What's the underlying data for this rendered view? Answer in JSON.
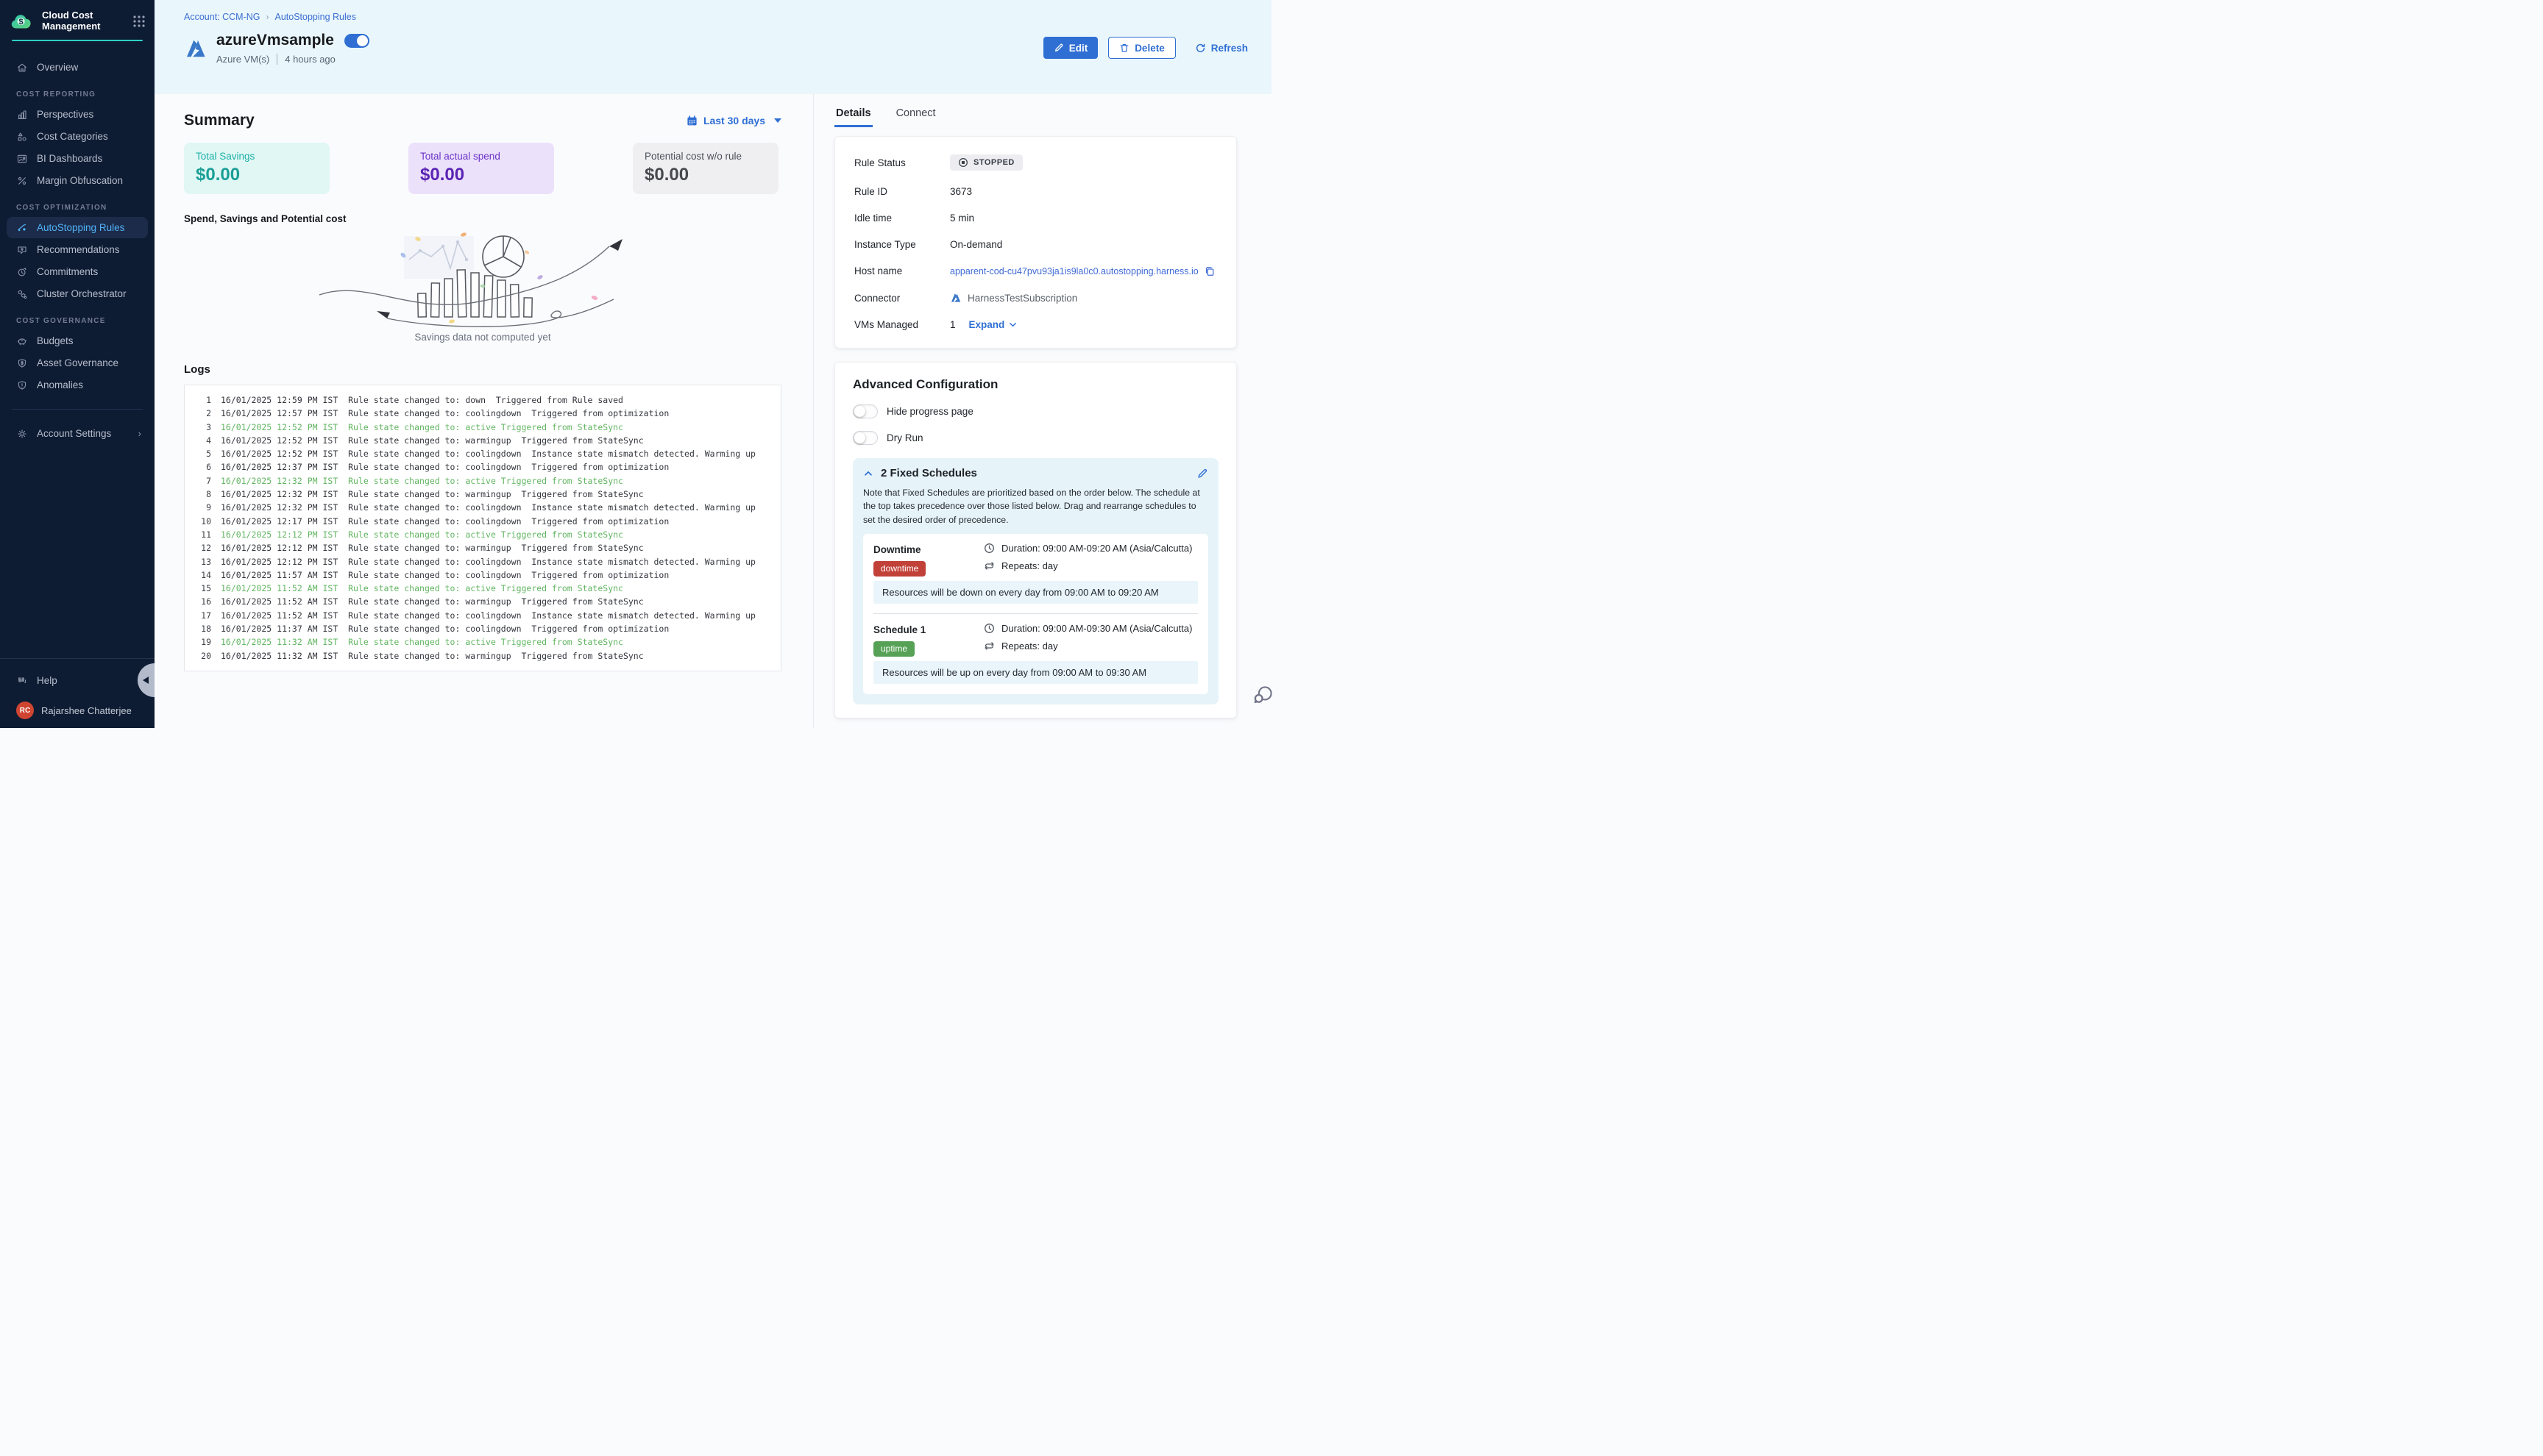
{
  "colors": {
    "sidebar_bg": "#0e1c33",
    "accent_teal": "#2bd0c5",
    "primary_blue": "#2f6fd4",
    "link_blue": "#3c6fd0",
    "active_nav_blue": "#4fb2f7",
    "header_band_bg": "#e9f6fc",
    "savings_teal": "#1a9f97",
    "savings_bg": "#e0f7f4",
    "spend_purple": "#5b24b4",
    "spend_bg": "#ece1fb",
    "potential_gray": "#47494f",
    "potential_bg": "#efeff2",
    "log_highlight_green": "#61b561",
    "downtime_red": "#c14038",
    "uptime_green": "#56a156",
    "schedules_panel_bg": "#e6f3f9",
    "avatar_red": "#cf4532"
  },
  "sidebar": {
    "title": "Cloud Cost Management",
    "sections": [
      {
        "items": [
          {
            "label": "Overview",
            "icon": "home"
          }
        ]
      },
      {
        "header": "COST REPORTING",
        "items": [
          {
            "label": "Perspectives",
            "icon": "bar-chart"
          },
          {
            "label": "Cost Categories",
            "icon": "shapes"
          },
          {
            "label": "BI Dashboards",
            "icon": "dashboard"
          },
          {
            "label": "Margin Obfuscation",
            "icon": "percent"
          }
        ]
      },
      {
        "header": "COST OPTIMIZATION",
        "items": [
          {
            "label": "AutoStopping Rules",
            "icon": "autostopping",
            "active": true
          },
          {
            "label": "Recommendations",
            "icon": "recommendation"
          },
          {
            "label": "Commitments",
            "icon": "clock-refresh"
          },
          {
            "label": "Cluster Orchestrator",
            "icon": "hexagons"
          }
        ]
      },
      {
        "header": "COST GOVERNANCE",
        "items": [
          {
            "label": "Budgets",
            "icon": "piggy-bank"
          },
          {
            "label": "Asset Governance",
            "icon": "shield-dollar"
          },
          {
            "label": "Anomalies",
            "icon": "shield-alert"
          }
        ]
      }
    ],
    "account_settings_label": "Account Settings",
    "help_label": "Help",
    "user": {
      "initials": "RC",
      "name": "Rajarshee Chatterjee"
    }
  },
  "breadcrumb": {
    "account": "Account: CCM-NG",
    "page": "AutoStopping Rules"
  },
  "header": {
    "title": "azureVmsample",
    "resource_type": "Azure VM(s)",
    "last_updated": "4 hours ago",
    "toggle_on": true,
    "edit_label": "Edit",
    "delete_label": "Delete",
    "refresh_label": "Refresh"
  },
  "summary": {
    "title": "Summary",
    "date_range_label": "Last 30 days",
    "cards": [
      {
        "label": "Total Savings",
        "value": "$0.00"
      },
      {
        "label": "Total actual spend",
        "value": "$0.00"
      },
      {
        "label": "Potential cost w/o rule",
        "value": "$0.00"
      }
    ],
    "chart_heading": "Spend, Savings and Potential cost",
    "empty_message": "Savings data not computed yet"
  },
  "logs": {
    "title": "Logs",
    "lines": [
      {
        "n": 1,
        "t": "16/01/2025 12:59 PM IST",
        "m": "Rule state changed to: down  Triggered from Rule saved",
        "highlight": false
      },
      {
        "n": 2,
        "t": "16/01/2025 12:57 PM IST",
        "m": "Rule state changed to: coolingdown  Triggered from optimization",
        "highlight": false
      },
      {
        "n": 3,
        "t": "16/01/2025 12:52 PM IST",
        "m": "Rule state changed to: active Triggered from StateSync",
        "highlight": true
      },
      {
        "n": 4,
        "t": "16/01/2025 12:52 PM IST",
        "m": "Rule state changed to: warmingup  Triggered from StateSync",
        "highlight": false
      },
      {
        "n": 5,
        "t": "16/01/2025 12:52 PM IST",
        "m": "Rule state changed to: coolingdown  Instance state mismatch detected. Warming up",
        "highlight": false
      },
      {
        "n": 6,
        "t": "16/01/2025 12:37 PM IST",
        "m": "Rule state changed to: coolingdown  Triggered from optimization",
        "highlight": false
      },
      {
        "n": 7,
        "t": "16/01/2025 12:32 PM IST",
        "m": "Rule state changed to: active Triggered from StateSync",
        "highlight": true
      },
      {
        "n": 8,
        "t": "16/01/2025 12:32 PM IST",
        "m": "Rule state changed to: warmingup  Triggered from StateSync",
        "highlight": false
      },
      {
        "n": 9,
        "t": "16/01/2025 12:32 PM IST",
        "m": "Rule state changed to: coolingdown  Instance state mismatch detected. Warming up",
        "highlight": false
      },
      {
        "n": 10,
        "t": "16/01/2025 12:17 PM IST",
        "m": "Rule state changed to: coolingdown  Triggered from optimization",
        "highlight": false
      },
      {
        "n": 11,
        "t": "16/01/2025 12:12 PM IST",
        "m": "Rule state changed to: active Triggered from StateSync",
        "highlight": true
      },
      {
        "n": 12,
        "t": "16/01/2025 12:12 PM IST",
        "m": "Rule state changed to: warmingup  Triggered from StateSync",
        "highlight": false
      },
      {
        "n": 13,
        "t": "16/01/2025 12:12 PM IST",
        "m": "Rule state changed to: coolingdown  Instance state mismatch detected. Warming up",
        "highlight": false
      },
      {
        "n": 14,
        "t": "16/01/2025 11:57 AM IST",
        "m": "Rule state changed to: coolingdown  Triggered from optimization",
        "highlight": false
      },
      {
        "n": 15,
        "t": "16/01/2025 11:52 AM IST",
        "m": "Rule state changed to: active Triggered from StateSync",
        "highlight": true
      },
      {
        "n": 16,
        "t": "16/01/2025 11:52 AM IST",
        "m": "Rule state changed to: warmingup  Triggered from StateSync",
        "highlight": false
      },
      {
        "n": 17,
        "t": "16/01/2025 11:52 AM IST",
        "m": "Rule state changed to: coolingdown  Instance state mismatch detected. Warming up",
        "highlight": false
      },
      {
        "n": 18,
        "t": "16/01/2025 11:37 AM IST",
        "m": "Rule state changed to: coolingdown  Triggered from optimization",
        "highlight": false
      },
      {
        "n": 19,
        "t": "16/01/2025 11:32 AM IST",
        "m": "Rule state changed to: active Triggered from StateSync",
        "highlight": true
      },
      {
        "n": 20,
        "t": "16/01/2025 11:32 AM IST",
        "m": "Rule state changed to: warmingup  Triggered from StateSync",
        "highlight": false
      }
    ]
  },
  "details_panel": {
    "tabs": [
      {
        "label": "Details",
        "active": true
      },
      {
        "label": "Connect",
        "active": false
      }
    ],
    "rows": {
      "rule_status": {
        "label": "Rule Status",
        "value": "STOPPED"
      },
      "rule_id": {
        "label": "Rule ID",
        "value": "3673"
      },
      "idle_time": {
        "label": "Idle time",
        "value": "5 min"
      },
      "instance_type": {
        "label": "Instance Type",
        "value": "On-demand"
      },
      "host_name": {
        "label": "Host name",
        "value": "apparent-cod-cu47pvu93ja1is9la0c0.autostopping.harness.io"
      },
      "connector": {
        "label": "Connector",
        "value": "HarnessTestSubscription"
      },
      "vms_managed": {
        "label": "VMs Managed",
        "value": "1",
        "expand_label": "Expand"
      }
    }
  },
  "advanced_config": {
    "title": "Advanced Configuration",
    "toggles": [
      {
        "label": "Hide progress page",
        "on": false
      },
      {
        "label": "Dry Run",
        "on": false
      }
    ],
    "schedules_panel": {
      "title": "2 Fixed Schedules",
      "note": "Note that Fixed Schedules are prioritized based on the order below. The schedule at the top takes precedence over those listed below. Drag and rearrange schedules to set the desired order of precedence.",
      "schedules": [
        {
          "name": "Downtime",
          "badge": "downtime",
          "type": "downtime",
          "duration": "Duration: 09:00 AM-09:20 AM (Asia/Calcutta)",
          "repeats": "Repeats: day",
          "description": "Resources will be down on every day from 09:00 AM to 09:20 AM"
        },
        {
          "name": "Schedule 1",
          "badge": "uptime",
          "type": "uptime",
          "duration": "Duration: 09:00 AM-09:30 AM (Asia/Calcutta)",
          "repeats": "Repeats: day",
          "description": "Resources will be up on every day from 09:00 AM to 09:30 AM"
        }
      ]
    }
  }
}
